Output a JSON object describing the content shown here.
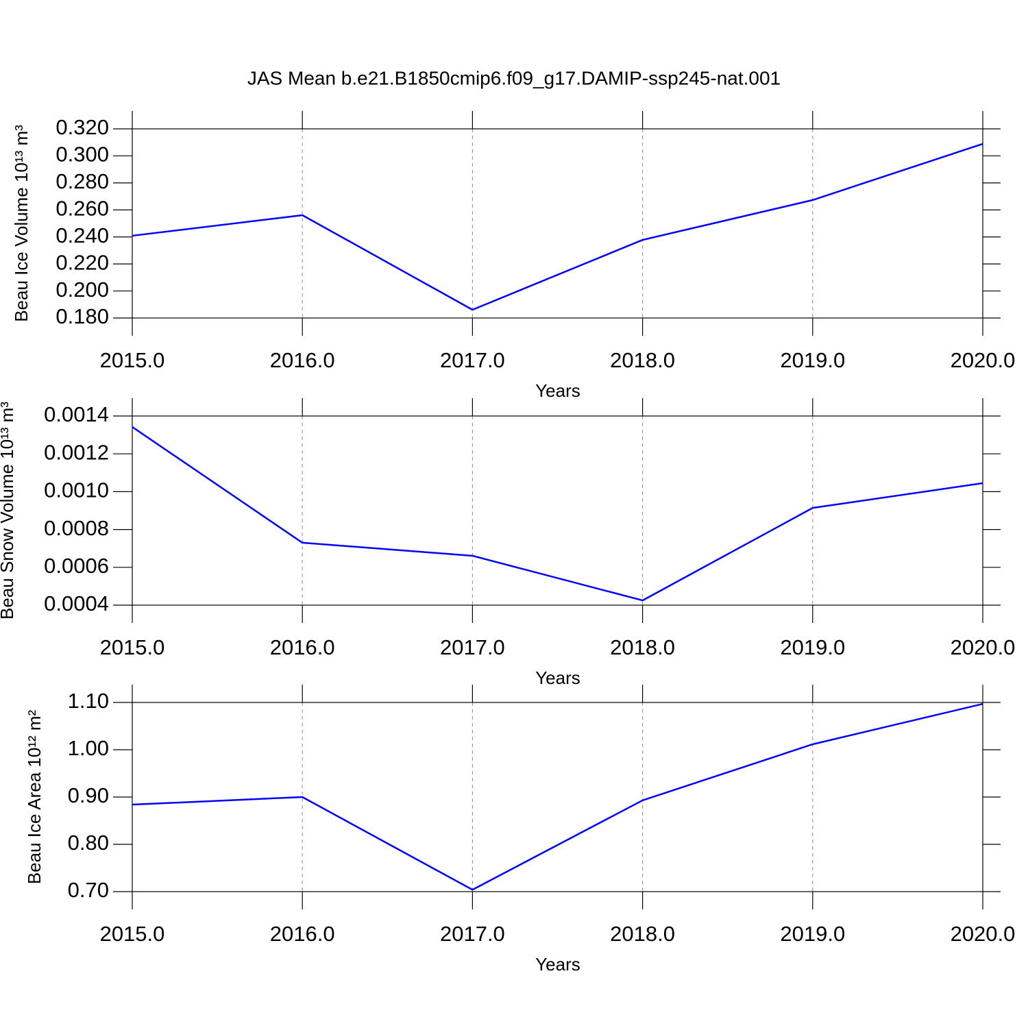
{
  "chart_data": [
    {
      "type": "line",
      "title": "JAS Mean b.e21.B1850cmip6.f09_g17.DAMIP-ssp245-nat.001",
      "xlabel": "Years",
      "ylabel": "Beau Ice Volume 10¹³ m³",
      "x": [
        2015,
        2016,
        2017,
        2018,
        2019,
        2020
      ],
      "values": [
        0.2409,
        0.2561,
        0.1861,
        0.2378,
        0.2673,
        0.3089
      ],
      "color": "#0000ff",
      "xlim": [
        2015,
        2020
      ],
      "ylim": [
        0.18,
        0.32
      ],
      "xticks": [
        {
          "value": 2015,
          "label": "2015.0"
        },
        {
          "value": 2016,
          "label": "2016.0"
        },
        {
          "value": 2017,
          "label": "2017.0"
        },
        {
          "value": 2018,
          "label": "2018.0"
        },
        {
          "value": 2019,
          "label": "2019.0"
        },
        {
          "value": 2020,
          "label": "2020.0"
        }
      ],
      "yticks": [
        {
          "value": 0.18,
          "label": "0.180"
        },
        {
          "value": 0.2,
          "label": "0.200"
        },
        {
          "value": 0.22,
          "label": "0.220"
        },
        {
          "value": 0.24,
          "label": "0.240"
        },
        {
          "value": 0.26,
          "label": "0.260"
        },
        {
          "value": 0.28,
          "label": "0.280"
        },
        {
          "value": 0.3,
          "label": "0.300"
        },
        {
          "value": 0.32,
          "label": "0.320"
        }
      ],
      "xgrid": true
    },
    {
      "type": "line",
      "xlabel": "Years",
      "ylabel": "Beau Snow Volume 10¹³ m³",
      "x": [
        2015,
        2016,
        2017,
        2018,
        2019,
        2020
      ],
      "values": [
        0.001342,
        0.00073,
        0.000661,
        0.000425,
        0.000914,
        0.001045
      ],
      "color": "#0000ff",
      "xlim": [
        2015,
        2020
      ],
      "ylim": [
        0.0004,
        0.0014
      ],
      "xticks": [
        {
          "value": 2015,
          "label": "2015.0"
        },
        {
          "value": 2016,
          "label": "2016.0"
        },
        {
          "value": 2017,
          "label": "2017.0"
        },
        {
          "value": 2018,
          "label": "2018.0"
        },
        {
          "value": 2019,
          "label": "2019.0"
        },
        {
          "value": 2020,
          "label": "2020.0"
        }
      ],
      "yticks": [
        0.0004,
        0.0006,
        0.0008,
        {
          "value": 0.001,
          "label": "0.0010"
        },
        0.0012,
        0.0014
      ],
      "xgrid": true
    },
    {
      "type": "line",
      "xlabel": "Years",
      "ylabel": "Beau Ice Area 10¹² m²",
      "x": [
        2015,
        2016,
        2017,
        2018,
        2019,
        2020
      ],
      "values": [
        0.884,
        0.9,
        0.704,
        0.893,
        1.0116,
        1.097
      ],
      "color": "#0000ff",
      "xlim": [
        2015,
        2020
      ],
      "ylim": [
        0.7,
        1.1
      ],
      "xticks": [
        {
          "value": 2015,
          "label": "2015.0"
        },
        {
          "value": 2016,
          "label": "2016.0"
        },
        {
          "value": 2017,
          "label": "2017.0"
        },
        {
          "value": 2018,
          "label": "2018.0"
        },
        {
          "value": 2019,
          "label": "2019.0"
        },
        {
          "value": 2020,
          "label": "2020.0"
        }
      ],
      "yticks": [
        {
          "value": 0.7,
          "label": "0.70"
        },
        {
          "value": 0.8,
          "label": "0.80"
        },
        {
          "value": 0.9,
          "label": "0.90"
        },
        {
          "value": 1.0,
          "label": "1.00"
        },
        {
          "value": 1.1,
          "label": "1.10"
        }
      ],
      "xgrid": true
    }
  ]
}
